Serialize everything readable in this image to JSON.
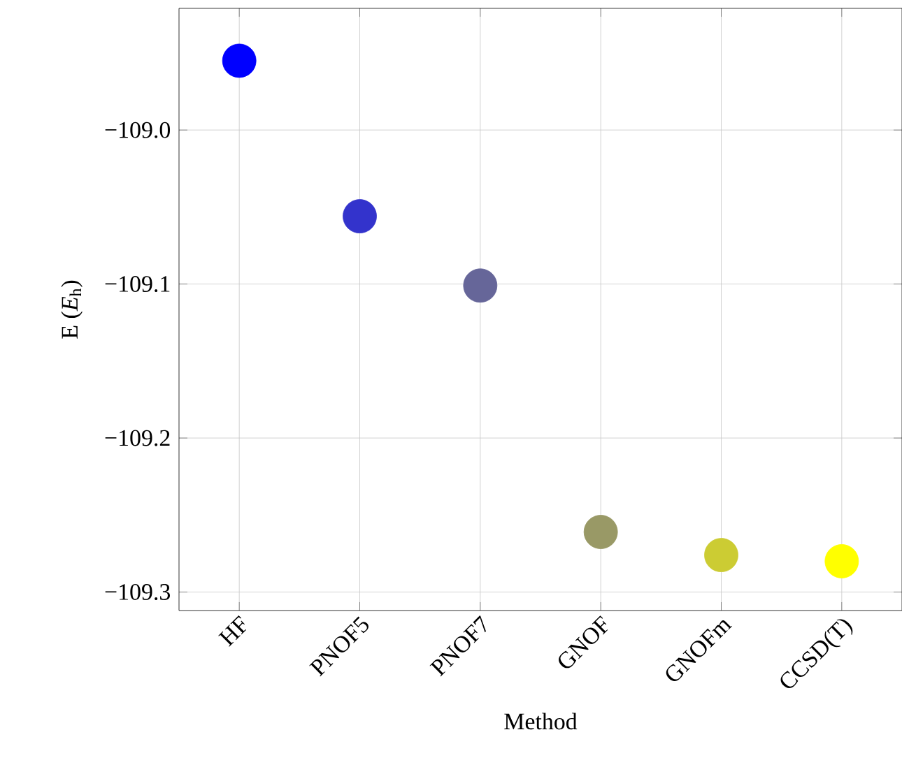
{
  "chart_data": {
    "type": "scatter",
    "xlabel": "Method",
    "ylabel": "E (*E*$_{h}$)",
    "categories": [
      "HF",
      "PNOF5",
      "PNOF7",
      "GNOF",
      "GNOFm",
      "CCSD(T)"
    ],
    "values": [
      -108.955,
      -109.056,
      -109.101,
      -109.261,
      -109.276,
      -109.28
    ],
    "colors": [
      "#0000ff",
      "#3333cc",
      "#666699",
      "#999966",
      "#cccc33",
      "#ffff00"
    ],
    "ylim": [
      -109.312,
      -108.921
    ],
    "yticks": [
      {
        "value": -109.3,
        "label": "−109.3"
      },
      {
        "value": -109.2,
        "label": "−109.2"
      },
      {
        "value": -109.1,
        "label": "−109.1"
      },
      {
        "value": -109.0,
        "label": "−109.0"
      }
    ],
    "grid": true,
    "marker": "circle"
  }
}
